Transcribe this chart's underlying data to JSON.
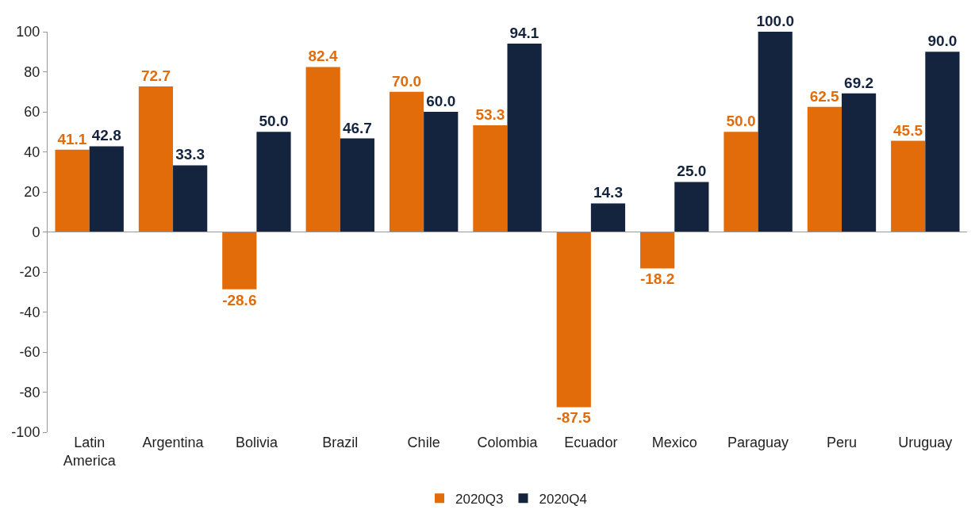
{
  "chart_data": {
    "type": "bar",
    "categories": [
      "Latin America",
      "Argentina",
      "Bolivia",
      "Brazil",
      "Chile",
      "Colombia",
      "Ecuador",
      "Mexico",
      "Paraguay",
      "Peru",
      "Uruguay"
    ],
    "series": [
      {
        "name": "2020Q3",
        "color": "#e36c0a",
        "values": [
          41.1,
          72.7,
          -28.6,
          82.4,
          70.0,
          53.3,
          -87.5,
          -18.2,
          50.0,
          62.5,
          45.5
        ],
        "value_labels": [
          "41.1",
          "72.7",
          "-28.6",
          "82.4",
          "70.0",
          "53.3",
          "-87.5",
          "-18.2",
          "50.0",
          "62.5",
          "45.5"
        ]
      },
      {
        "name": "2020Q4",
        "color": "#14243f",
        "values": [
          42.8,
          33.3,
          50.0,
          46.7,
          60.0,
          94.1,
          14.3,
          25.0,
          100.0,
          69.2,
          90.0
        ],
        "value_labels": [
          "42.8",
          "33.3",
          "50.0",
          "46.7",
          "60.0",
          "94.1",
          "14.3",
          "25.0",
          "100.0",
          "69.2",
          "90.0"
        ]
      }
    ],
    "ylim": [
      -100,
      100
    ],
    "yticks": [
      -100,
      -80,
      -60,
      -40,
      -20,
      0,
      20,
      40,
      60,
      80,
      100
    ],
    "legend": "bottom"
  }
}
